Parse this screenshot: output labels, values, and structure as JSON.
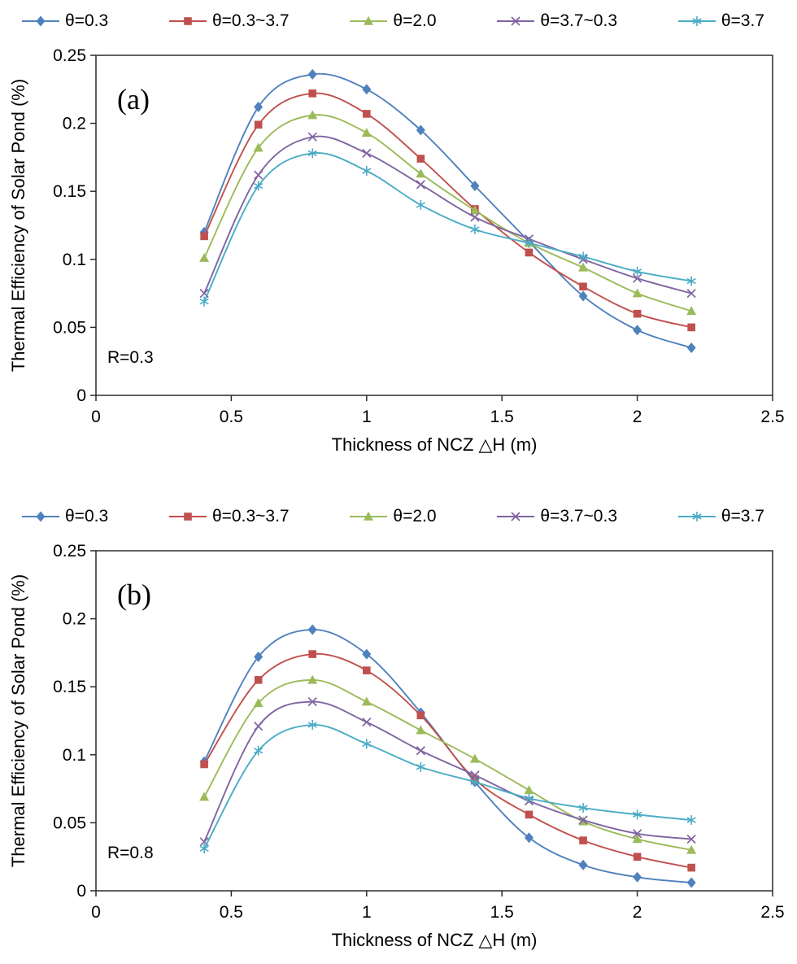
{
  "figure": {
    "background": "#ffffff",
    "frame_color": "#2b2b2b"
  },
  "chart_data": [
    {
      "type": "line",
      "panel_label": "(a)",
      "annotation": "R=0.3",
      "xlabel": "Thickness of NCZ △H (m)",
      "ylabel": "Thermal Efficiency of Solar Pond (%)",
      "xlim": [
        0,
        2.5
      ],
      "ylim": [
        0,
        0.25
      ],
      "xticks": [
        0,
        0.5,
        1,
        1.5,
        2,
        2.5
      ],
      "xtick_labels": [
        "0",
        "0.5",
        "1",
        "1.5",
        "2",
        "2.5"
      ],
      "yticks": [
        0,
        0.05,
        0.1,
        0.15,
        0.2,
        0.25
      ],
      "ytick_labels": [
        "0",
        "0.05",
        "0.1",
        "0.15",
        "0.2",
        "0.25"
      ],
      "grid": false,
      "legend_position": "top",
      "x": [
        0.4,
        0.6,
        0.8,
        1.0,
        1.2,
        1.4,
        1.6,
        1.8,
        2.0,
        2.2
      ],
      "series": [
        {
          "name": "θ=0.3",
          "marker": "diamond",
          "color": "#4F81BD",
          "values": [
            0.12,
            0.212,
            0.236,
            0.225,
            0.195,
            0.154,
            0.113,
            0.073,
            0.048,
            0.035
          ]
        },
        {
          "name": "θ=0.3~3.7",
          "marker": "square",
          "color": "#C0504D",
          "values": [
            0.117,
            0.199,
            0.222,
            0.207,
            0.174,
            0.137,
            0.105,
            0.08,
            0.06,
            0.05
          ]
        },
        {
          "name": "θ=2.0",
          "marker": "triangle",
          "color": "#9BBB59",
          "values": [
            0.101,
            0.182,
            0.206,
            0.193,
            0.163,
            0.136,
            0.112,
            0.094,
            0.075,
            0.062
          ]
        },
        {
          "name": "θ=3.7~0.3",
          "marker": "x",
          "color": "#8064A2",
          "values": [
            0.075,
            0.162,
            0.19,
            0.178,
            0.155,
            0.131,
            0.115,
            0.1,
            0.086,
            0.075
          ]
        },
        {
          "name": "θ=3.7",
          "marker": "asterisk",
          "color": "#4BACC6",
          "values": [
            0.069,
            0.154,
            0.178,
            0.165,
            0.14,
            0.122,
            0.112,
            0.102,
            0.091,
            0.084
          ]
        }
      ]
    },
    {
      "type": "line",
      "panel_label": "(b)",
      "annotation": "R=0.8",
      "xlabel": "Thickness of NCZ △H (m)",
      "ylabel": "Thermal Efficiency of Solar Pond (%)",
      "xlim": [
        0,
        2.5
      ],
      "ylim": [
        0,
        0.25
      ],
      "xticks": [
        0,
        0.5,
        1,
        1.5,
        2,
        2.5
      ],
      "xtick_labels": [
        "0",
        "0.5",
        "1",
        "1.5",
        "2",
        "2.5"
      ],
      "yticks": [
        0,
        0.05,
        0.1,
        0.15,
        0.2,
        0.25
      ],
      "ytick_labels": [
        "0",
        "0.05",
        "0.1",
        "0.15",
        "0.2",
        "0.25"
      ],
      "grid": false,
      "legend_position": "top",
      "x": [
        0.4,
        0.6,
        0.8,
        1.0,
        1.2,
        1.4,
        1.6,
        1.8,
        2.0,
        2.2
      ],
      "series": [
        {
          "name": "θ=0.3",
          "marker": "diamond",
          "color": "#4F81BD",
          "values": [
            0.095,
            0.172,
            0.192,
            0.174,
            0.131,
            0.08,
            0.039,
            0.019,
            0.01,
            0.006
          ]
        },
        {
          "name": "θ=0.3~3.7",
          "marker": "square",
          "color": "#C0504D",
          "values": [
            0.093,
            0.155,
            0.174,
            0.162,
            0.129,
            0.082,
            0.056,
            0.037,
            0.025,
            0.017
          ]
        },
        {
          "name": "θ=2.0",
          "marker": "triangle",
          "color": "#9BBB59",
          "values": [
            0.069,
            0.138,
            0.155,
            0.139,
            0.118,
            0.097,
            0.074,
            0.051,
            0.038,
            0.03
          ]
        },
        {
          "name": "θ=3.7~0.3",
          "marker": "x",
          "color": "#8064A2",
          "values": [
            0.036,
            0.121,
            0.139,
            0.124,
            0.103,
            0.085,
            0.066,
            0.052,
            0.042,
            0.038
          ]
        },
        {
          "name": "θ=3.7",
          "marker": "asterisk",
          "color": "#4BACC6",
          "values": [
            0.031,
            0.103,
            0.122,
            0.108,
            0.091,
            0.08,
            0.068,
            0.061,
            0.056,
            0.052
          ]
        }
      ]
    }
  ]
}
